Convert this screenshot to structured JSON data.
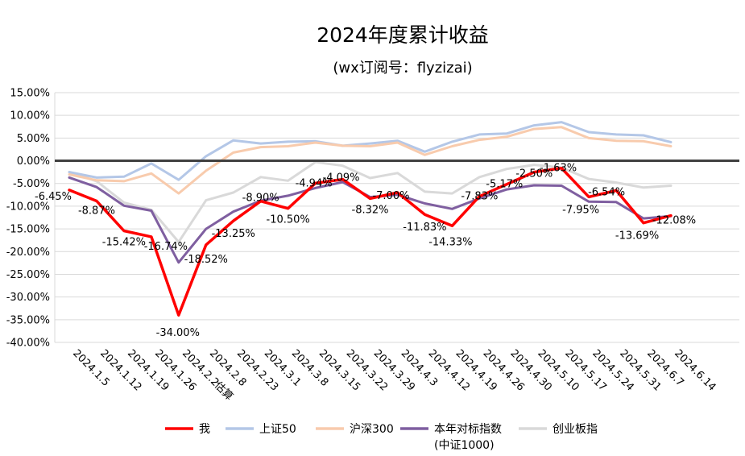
{
  "chart_data": {
    "type": "line",
    "title": "2024年度累计收益",
    "subtitle": "(wx订阅号：flyzizai)",
    "xlabel": "",
    "ylabel": "",
    "ylim": [
      -40,
      15
    ],
    "y_ticks": [
      "15.00%",
      "10.00%",
      "5.00%",
      "0.00%",
      "-5.00%",
      "-10.00%",
      "-15.00%",
      "-20.00%",
      "-25.00%",
      "-30.00%",
      "-35.00%",
      "-40.00%"
    ],
    "categories": [
      "2024.1.5",
      "2024.1.12",
      "2024.1.19",
      "2024.1.26",
      "2024.2.2",
      "2024.2.8",
      "2024.2.23",
      "2024.3.1",
      "2024.3.8",
      "2024.3.15",
      "2024.3.22",
      "2024.3.29",
      "2024.4.3",
      "2024.4.12",
      "2024.4.19",
      "2024.4.26",
      "2024.4.30",
      "2024.5.10",
      "2024.5.17",
      "2024.5.24",
      "2024.5.31",
      "2024.6.7",
      "2024.6.14"
    ],
    "extra_tick_note": "估算",
    "grid": true,
    "legend_position": "bottom",
    "series": [
      {
        "name": "我",
        "color": "#ff0000",
        "values": [
          -6.45,
          -8.87,
          -15.42,
          -16.74,
          -34.0,
          -18.52,
          -13.25,
          -8.9,
          -10.5,
          -4.94,
          -4.09,
          -8.32,
          -7.0,
          -11.83,
          -14.33,
          -7.83,
          -5.17,
          -2.5,
          -1.63,
          -7.95,
          -6.54,
          -13.69,
          -12.08
        ],
        "labels": [
          "-6.45%",
          "-8.87%",
          "-15.42%",
          "-16.74%",
          "-34.00%",
          "-18.52%",
          "-13.25%",
          "-8.90%",
          "-10.50%",
          "-4.94%",
          "-4.09%",
          "-8.32%",
          "-7.00%",
          "-11.83%",
          "-14.33%",
          "-7.83%",
          "-5.17%",
          "-2.50%",
          "-1.63%",
          "-7.95%",
          "-6.54%",
          "-13.69%",
          "-12.08%"
        ]
      },
      {
        "name": "上证50",
        "color": "#b4c7e7",
        "values": [
          -2.5,
          -3.7,
          -3.5,
          -0.6,
          -4.2,
          1.0,
          4.5,
          3.8,
          4.2,
          4.3,
          3.3,
          3.8,
          4.4,
          2.0,
          4.2,
          5.8,
          6.0,
          7.8,
          8.5,
          6.3,
          5.8,
          5.6,
          4.1
        ]
      },
      {
        "name": "沪深300",
        "color": "#f8cbad",
        "values": [
          -3.0,
          -4.3,
          -4.5,
          -2.8,
          -7.2,
          -2.2,
          1.8,
          3.0,
          3.2,
          4.0,
          3.3,
          3.2,
          4.0,
          1.3,
          3.2,
          4.6,
          5.3,
          7.0,
          7.4,
          5.0,
          4.4,
          4.3,
          3.2
        ]
      },
      {
        "name": "本年对标指数",
        "name_line2": "(中证1000)",
        "color": "#7f5fa0",
        "values": [
          -3.7,
          -5.8,
          -9.9,
          -11.0,
          -22.4,
          -15.0,
          -11.2,
          -8.8,
          -7.7,
          -6.0,
          -4.7,
          -8.0,
          -7.5,
          -9.4,
          -10.6,
          -8.3,
          -6.3,
          -5.4,
          -5.5,
          -9.0,
          -9.1,
          -12.7,
          -12.2
        ]
      },
      {
        "name": "创业板指",
        "color": "#d9d9d9",
        "values": [
          -2.5,
          -4.5,
          -9.2,
          -10.8,
          -17.9,
          -8.7,
          -7.0,
          -3.6,
          -4.4,
          -0.3,
          -1.1,
          -3.8,
          -2.7,
          -6.8,
          -7.2,
          -3.6,
          -1.8,
          -0.9,
          -1.5,
          -4.0,
          -4.8,
          -5.9,
          -5.5
        ]
      }
    ]
  }
}
